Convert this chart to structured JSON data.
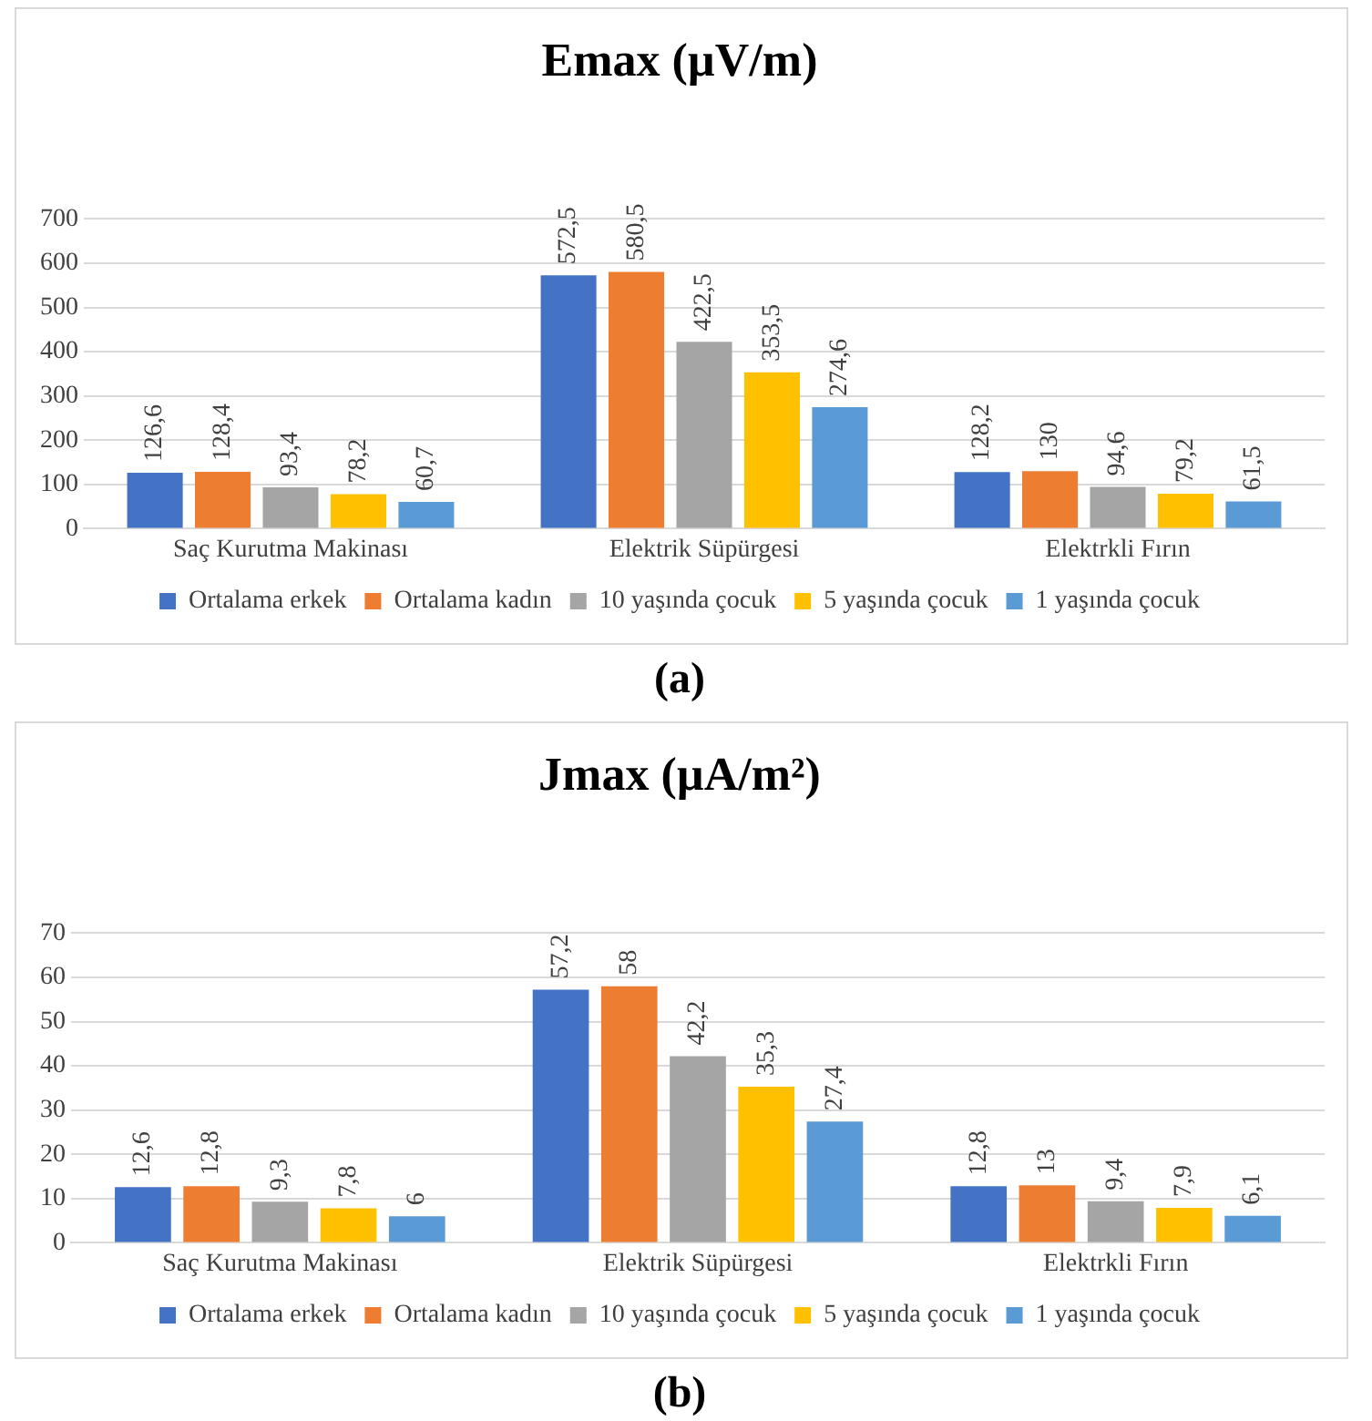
{
  "chart_data": [
    {
      "type": "bar",
      "title": "Emax (µV/m)",
      "categories": [
        "Saç Kurutma Makinası",
        "Elektrik Süpürgesi",
        "Elektrkli Fırın"
      ],
      "series": [
        {
          "name": "Ortalama erkek",
          "color": "#4472c4",
          "values": [
            126.6,
            572.5,
            128.2
          ],
          "value_labels": [
            "126,6",
            "572,5",
            "128,2"
          ]
        },
        {
          "name": "Ortalama kadın",
          "color": "#ed7d31",
          "values": [
            128.4,
            580.5,
            130
          ],
          "value_labels": [
            "128,4",
            "580,5",
            "130"
          ]
        },
        {
          "name": "10 yaşında çocuk",
          "color": "#a5a5a5",
          "values": [
            93.4,
            422.5,
            94.6
          ],
          "value_labels": [
            "93,4",
            "422,5",
            "94,6"
          ]
        },
        {
          "name": "5 yaşında çocuk",
          "color": "#ffc000",
          "values": [
            78.2,
            353.5,
            79.2
          ],
          "value_labels": [
            "78,2",
            "353,5",
            "79,2"
          ]
        },
        {
          "name": "1 yaşında çocuk",
          "color": "#5b9bd5",
          "values": [
            60.7,
            274.6,
            61.5
          ],
          "value_labels": [
            "60,7",
            "274,6",
            "61,5"
          ]
        }
      ],
      "ylim": [
        0,
        700
      ],
      "yticks": [
        0,
        100,
        200,
        300,
        400,
        500,
        600,
        700
      ],
      "grid": "y",
      "legend": "bottom",
      "annotations": [
        "(a)"
      ]
    },
    {
      "type": "bar",
      "title": "Jmax (µA/m²)",
      "categories": [
        "Saç Kurutma Makinası",
        "Elektrik Süpürgesi",
        "Elektrkli Fırın"
      ],
      "series": [
        {
          "name": "Ortalama erkek",
          "color": "#4472c4",
          "values": [
            12.6,
            57.2,
            12.8
          ],
          "value_labels": [
            "12,6",
            "57,2",
            "12,8"
          ]
        },
        {
          "name": "Ortalama kadın",
          "color": "#ed7d31",
          "values": [
            12.8,
            58,
            13
          ],
          "value_labels": [
            "12,8",
            "58",
            "13"
          ]
        },
        {
          "name": "10 yaşında çocuk",
          "color": "#a5a5a5",
          "values": [
            9.3,
            42.2,
            9.4
          ],
          "value_labels": [
            "9,3",
            "42,2",
            "9,4"
          ]
        },
        {
          "name": "5 yaşında çocuk",
          "color": "#ffc000",
          "values": [
            7.8,
            35.3,
            7.9
          ],
          "value_labels": [
            "7,8",
            "35,3",
            "7,9"
          ]
        },
        {
          "name": "1 yaşında çocuk",
          "color": "#5b9bd5",
          "values": [
            6,
            27.4,
            6.1
          ],
          "value_labels": [
            "6",
            "27,4",
            "6,1"
          ]
        }
      ],
      "ylim": [
        0,
        70
      ],
      "yticks": [
        0,
        10,
        20,
        30,
        40,
        50,
        60,
        70
      ],
      "grid": "y",
      "legend": "bottom",
      "annotations": [
        "(b)"
      ]
    }
  ]
}
